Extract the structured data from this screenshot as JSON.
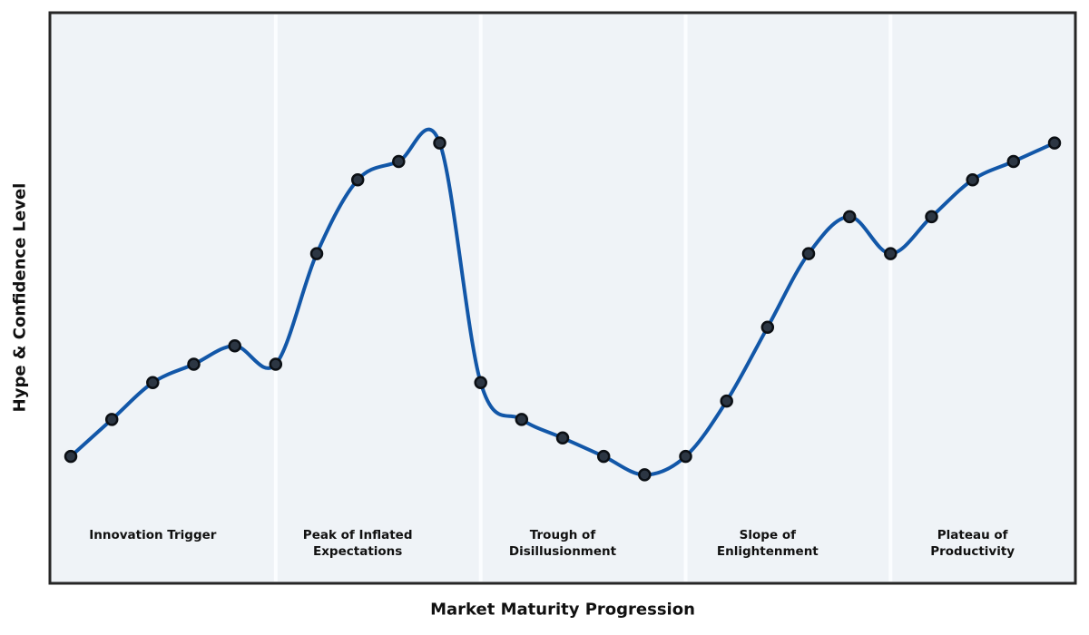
{
  "chart_data": {
    "type": "line",
    "title": "",
    "xlabel": "Market Maturity Progression",
    "ylabel": "Hype & Confidence Level",
    "x": [
      1,
      2,
      3,
      4,
      5,
      6,
      7,
      8,
      9,
      10,
      11,
      12,
      13,
      14,
      15,
      16,
      17,
      18,
      19,
      20,
      21,
      22,
      23,
      24,
      25
    ],
    "y": [
      24,
      32,
      40,
      44,
      48,
      44,
      68,
      84,
      88,
      92,
      40,
      32,
      28,
      24,
      20,
      24,
      36,
      52,
      68,
      76,
      68,
      76,
      84,
      88,
      92
    ],
    "ylim": [
      0,
      120
    ],
    "grid": false,
    "legend": null,
    "axis_ticks_visible": false,
    "phases": [
      {
        "label": "Innovation Trigger",
        "label_lines": [
          "Innovation Trigger"
        ],
        "start": 1,
        "end": 5
      },
      {
        "label": "Peak of Inflated Expectations",
        "label_lines": [
          "Peak of Inflated",
          "Expectations"
        ],
        "start": 6,
        "end": 10
      },
      {
        "label": "Trough of Disillusionment",
        "label_lines": [
          "Trough of",
          "Disillusionment"
        ],
        "start": 11,
        "end": 15
      },
      {
        "label": "Slope of Enlightenment",
        "label_lines": [
          "Slope of",
          "Enlightenment"
        ],
        "start": 16,
        "end": 20
      },
      {
        "label": "Plateau of Productivity",
        "label_lines": [
          "Plateau of",
          "Productivity"
        ],
        "start": 21,
        "end": 25
      }
    ],
    "colors": {
      "line": "#1257a8",
      "marker_fill": "#2c3643",
      "marker_edge": "#0b0f14",
      "plot_background": "#eff3f7",
      "phase_separator": "#fbfdff",
      "spine": "#262626",
      "text": "#111111",
      "figure_background": "#ffffff"
    }
  }
}
